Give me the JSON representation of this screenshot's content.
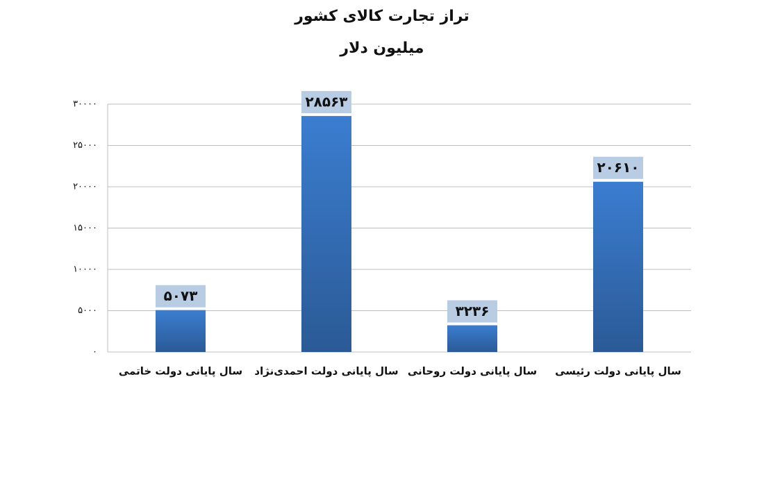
{
  "chart_data": {
    "type": "bar",
    "title": "تراز تجارت کالای کشور",
    "subtitle": "میلیون دلار",
    "categories": [
      "سال پایانی دولت خاتمی",
      "سال پایانی دولت احمدی‌نژاد",
      "سال پایانی دولت روحانی",
      "سال پایانی دولت رئیسی"
    ],
    "values": [
      5073,
      28563,
      3236,
      20610
    ],
    "value_labels": [
      "۵۰۷۳",
      "۲۸۵۶۳",
      "۳۲۳۶",
      "۲۰۶۱۰"
    ],
    "color": "#3b7dd0",
    "ylim": [
      0,
      30000
    ],
    "yticks": [
      {
        "value": 0,
        "label": "۰"
      },
      {
        "value": 5000,
        "label": "۵۰۰۰"
      },
      {
        "value": 10000,
        "label": "۱۰۰۰۰"
      },
      {
        "value": 15000,
        "label": "۱۵۰۰۰"
      },
      {
        "value": 20000,
        "label": "۲۰۰۰۰"
      },
      {
        "value": 25000,
        "label": "۲۵۰۰۰"
      },
      {
        "value": 30000,
        "label": "۳۰۰۰۰"
      }
    ],
    "grid": true
  }
}
